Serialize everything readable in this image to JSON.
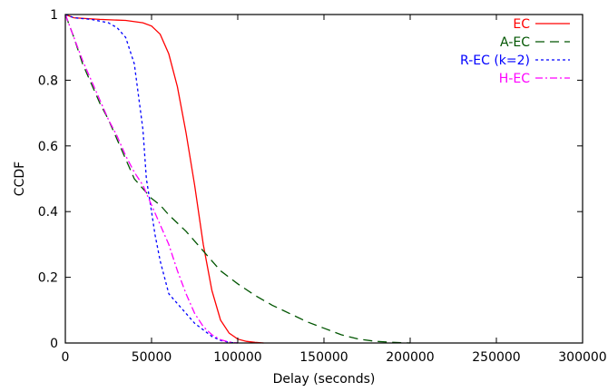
{
  "chart_data": {
    "type": "line",
    "xlabel": "Delay (seconds)",
    "ylabel": "CCDF",
    "xlim": [
      0,
      300000
    ],
    "ylim": [
      0,
      1
    ],
    "x_ticks": [
      0,
      50000,
      100000,
      150000,
      200000,
      250000,
      300000
    ],
    "y_ticks": [
      0,
      0.2,
      0.4,
      0.6,
      0.8,
      1
    ],
    "x_tick_labels": [
      "0",
      "50000",
      "100000",
      "150000",
      "200000",
      "250000",
      "300000"
    ],
    "y_tick_labels": [
      "0",
      "0.2",
      "0.4",
      "0.6",
      "0.8",
      "1"
    ],
    "grid": false,
    "legend_position": "top-right",
    "series": [
      {
        "name": "EC",
        "color": "#ff0000",
        "dash": "solid",
        "points": [
          [
            0,
            1.0
          ],
          [
            5000,
            0.99
          ],
          [
            20000,
            0.985
          ],
          [
            35000,
            0.982
          ],
          [
            45000,
            0.975
          ],
          [
            50000,
            0.965
          ],
          [
            55000,
            0.94
          ],
          [
            60000,
            0.88
          ],
          [
            65000,
            0.78
          ],
          [
            70000,
            0.64
          ],
          [
            75000,
            0.48
          ],
          [
            80000,
            0.3
          ],
          [
            85000,
            0.16
          ],
          [
            90000,
            0.07
          ],
          [
            95000,
            0.03
          ],
          [
            100000,
            0.012
          ],
          [
            105000,
            0.005
          ],
          [
            110000,
            0.002
          ],
          [
            115000,
            0.0
          ]
        ]
      },
      {
        "name": "A-EC",
        "color": "#005500",
        "dash": "long-dash",
        "points": [
          [
            0,
            1.0
          ],
          [
            5000,
            0.93
          ],
          [
            10000,
            0.85
          ],
          [
            15000,
            0.79
          ],
          [
            20000,
            0.73
          ],
          [
            25000,
            0.68
          ],
          [
            30000,
            0.62
          ],
          [
            35000,
            0.56
          ],
          [
            40000,
            0.5
          ],
          [
            45000,
            0.47
          ],
          [
            50000,
            0.44
          ],
          [
            55000,
            0.42
          ],
          [
            60000,
            0.39
          ],
          [
            70000,
            0.34
          ],
          [
            80000,
            0.28
          ],
          [
            90000,
            0.22
          ],
          [
            100000,
            0.18
          ],
          [
            110000,
            0.145
          ],
          [
            120000,
            0.115
          ],
          [
            130000,
            0.09
          ],
          [
            140000,
            0.065
          ],
          [
            150000,
            0.045
          ],
          [
            160000,
            0.025
          ],
          [
            170000,
            0.012
          ],
          [
            180000,
            0.005
          ],
          [
            190000,
            0.002
          ],
          [
            200000,
            0.0
          ]
        ]
      },
      {
        "name": "R-EC (k=2)",
        "color": "#0000ff",
        "dash": "short-dash",
        "points": [
          [
            0,
            1.0
          ],
          [
            5000,
            0.99
          ],
          [
            15000,
            0.985
          ],
          [
            25000,
            0.975
          ],
          [
            30000,
            0.96
          ],
          [
            35000,
            0.93
          ],
          [
            40000,
            0.85
          ],
          [
            45000,
            0.65
          ],
          [
            47000,
            0.5
          ],
          [
            50000,
            0.4
          ],
          [
            52000,
            0.33
          ],
          [
            55000,
            0.25
          ],
          [
            58000,
            0.19
          ],
          [
            60000,
            0.15
          ],
          [
            65000,
            0.12
          ],
          [
            70000,
            0.09
          ],
          [
            75000,
            0.06
          ],
          [
            80000,
            0.04
          ],
          [
            85000,
            0.02
          ],
          [
            90000,
            0.008
          ],
          [
            95000,
            0.002
          ],
          [
            100000,
            0.0
          ]
        ]
      },
      {
        "name": "H-EC",
        "color": "#ff00ff",
        "dash": "dash-dot",
        "points": [
          [
            0,
            1.0
          ],
          [
            5000,
            0.93
          ],
          [
            10000,
            0.86
          ],
          [
            15000,
            0.8
          ],
          [
            20000,
            0.74
          ],
          [
            25000,
            0.68
          ],
          [
            30000,
            0.63
          ],
          [
            35000,
            0.57
          ],
          [
            40000,
            0.52
          ],
          [
            45000,
            0.48
          ],
          [
            50000,
            0.42
          ],
          [
            55000,
            0.36
          ],
          [
            60000,
            0.3
          ],
          [
            65000,
            0.22
          ],
          [
            70000,
            0.15
          ],
          [
            75000,
            0.09
          ],
          [
            80000,
            0.05
          ],
          [
            85000,
            0.025
          ],
          [
            90000,
            0.01
          ],
          [
            95000,
            0.003
          ],
          [
            100000,
            0.0
          ]
        ]
      }
    ]
  }
}
